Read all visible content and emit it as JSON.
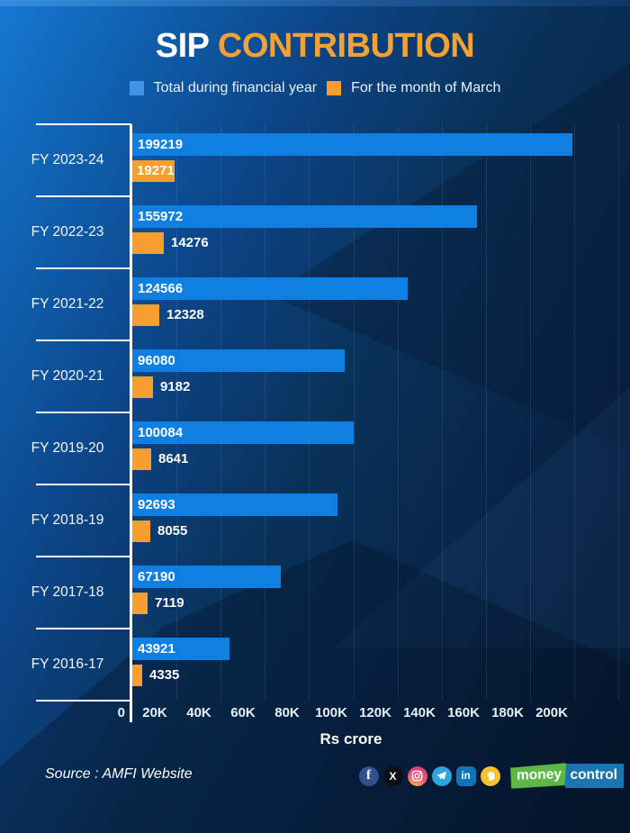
{
  "title": {
    "part1": "SIP",
    "part2": "CONTRIBUTION"
  },
  "legend": [
    {
      "label": "Total during financial year",
      "color": "#3f95e6"
    },
    {
      "label": "For the month of March",
      "color": "#f79e2f"
    }
  ],
  "chart_data": {
    "type": "bar",
    "orientation": "horizontal",
    "title": "SIP CONTRIBUTION",
    "categories": [
      "FY 2023-24",
      "FY 2022-23",
      "FY 2021-22",
      "FY 2020-21",
      "FY 2019-20",
      "FY 2018-19",
      "FY 2017-18",
      "FY 2016-17"
    ],
    "series": [
      {
        "name": "Total during financial year",
        "color": "#0f80e2",
        "values": [
          199219,
          155972,
          124566,
          96080,
          100084,
          92693,
          67190,
          43921
        ]
      },
      {
        "name": "For the month of March",
        "color": "#f79e2f",
        "values": [
          19271,
          14276,
          12328,
          9182,
          8641,
          8055,
          7119,
          4335
        ]
      }
    ],
    "xlabel": "Rs crore",
    "x_ticks": [
      "0",
      "20K",
      "40K",
      "60K",
      "80K",
      "100K",
      "120K",
      "140K",
      "160K",
      "180K",
      "200K"
    ],
    "xlim": [
      0,
      200000
    ],
    "grid": true,
    "legend_position": "top"
  },
  "footer": {
    "source": "Source : AMFI Website",
    "social_icons": [
      "facebook",
      "x",
      "instagram",
      "telegram",
      "linkedin",
      "koo"
    ],
    "linkedin_text": "in",
    "facebook_text": "f",
    "x_text": "X",
    "logo": {
      "part1": "money",
      "part2": "control"
    }
  },
  "colors": {
    "bar_blue": "#0f80e2",
    "bar_orange": "#f79e2f",
    "title_accent": "#f2a235",
    "logo_green": "#5cb747",
    "logo_blue": "#1d74ae"
  }
}
